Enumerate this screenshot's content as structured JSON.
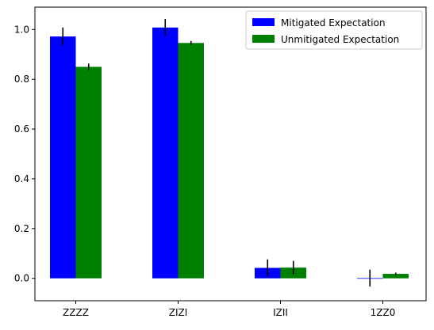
{
  "chart_data": {
    "type": "bar",
    "categories": [
      "ZZZZ",
      "ZIZI",
      "IZII",
      "1ZZ0"
    ],
    "series": [
      {
        "name": "Mitigated Expectation",
        "color": "#0000ff",
        "values": [
          0.972,
          1.008,
          0.042,
          0.001
        ],
        "errors": [
          0.036,
          0.034,
          0.034,
          0.034
        ]
      },
      {
        "name": "Unmitigated Expectation",
        "color": "#008000",
        "values": [
          0.85,
          0.946,
          0.043,
          0.018
        ],
        "errors": [
          0.013,
          0.008,
          0.027,
          0.005
        ]
      }
    ],
    "yticks": [
      0.0,
      0.2,
      0.4,
      0.6,
      0.8,
      1.0
    ],
    "ylim": [
      -0.09,
      1.09
    ],
    "title": "",
    "xlabel": "",
    "ylabel": "",
    "legend_position": "top-right",
    "grid": false
  }
}
